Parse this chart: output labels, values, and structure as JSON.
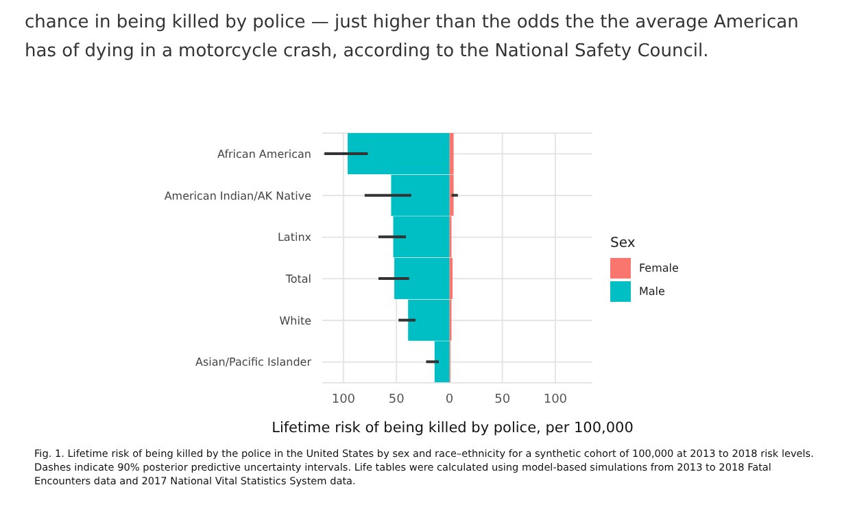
{
  "chart_data": {
    "type": "bar",
    "orientation": "horizontal",
    "stacked": true,
    "annotations": [
      "chance in being killed by police — just higher than the odds the the average American has of dying in a motorcycle crash, according to the National Safety Council.",
      "Fig. 1.  Lifetime risk of being killed by the police in the United States by sex and race–ethnicity for a synthetic cohort of 100,000 at 2013 to 2018 risk levels. Dashes indicate 90% posterior predictive uncertainty intervals. Life tables were calculated using model-based simulations from 2013 to 2018 Fatal Encounters data and 2017 National Vital Statistics System data."
    ],
    "xlabel": "Lifetime risk of being killed by police, per 100,000",
    "legend_title": "Sex",
    "categories": [
      "African American",
      "American Indian/AK Native",
      "Latinx",
      "Total",
      "White",
      "Asian/Pacific Islander"
    ],
    "series": [
      {
        "name": "Female",
        "color": "#f8766d",
        "values": [
          4,
          4,
          2,
          3,
          2,
          1
        ],
        "errors": [
          null,
          [
            2,
            8
          ],
          null,
          null,
          null,
          null
        ]
      },
      {
        "name": "Male",
        "color": "#00bfc4",
        "values": [
          -96,
          -55,
          -53,
          -52,
          -39,
          -14
        ],
        "errors": [
          [
            -118,
            -77
          ],
          [
            -80,
            -36
          ],
          [
            -67,
            -41
          ],
          [
            -67,
            -38
          ],
          [
            -48,
            -32
          ],
          [
            -22,
            -10
          ]
        ]
      }
    ],
    "xlim": [
      -120,
      135
    ],
    "xticks": [
      {
        "value": -100,
        "label": "100"
      },
      {
        "value": -50,
        "label": "50"
      },
      0,
      50,
      100
    ],
    "grid": true,
    "legend": "right"
  }
}
